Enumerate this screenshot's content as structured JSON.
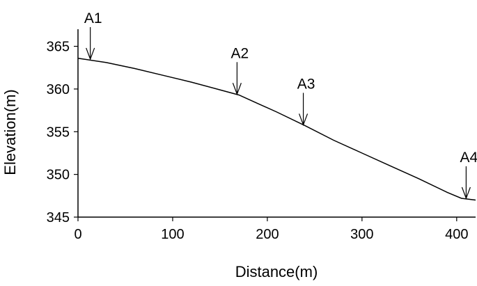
{
  "chart_data": {
    "type": "line",
    "xlabel": "Distance(m)",
    "ylabel": "Elevation(m)",
    "xlim": [
      0,
      420
    ],
    "ylim": [
      345,
      367
    ],
    "x_ticks": [
      0,
      100,
      200,
      300,
      400
    ],
    "y_ticks": [
      345,
      350,
      355,
      360,
      365
    ],
    "grid": false,
    "series": [
      {
        "x": [
          0,
          30,
          60,
          90,
          120,
          150,
          170,
          190,
          210,
          240,
          270,
          300,
          330,
          360,
          390,
          405,
          420
        ],
        "values": [
          363.6,
          363.1,
          362.4,
          361.6,
          360.8,
          359.9,
          359.3,
          358.3,
          357.3,
          355.7,
          354.0,
          352.5,
          351.0,
          349.5,
          347.9,
          347.2,
          347.0
        ]
      }
    ],
    "annotations": [
      {
        "label": "A1",
        "x": 13,
        "y": 363.5
      },
      {
        "label": "A2",
        "x": 168,
        "y": 359.4
      },
      {
        "label": "A3",
        "x": 238,
        "y": 355.8
      },
      {
        "label": "A4",
        "x": 410,
        "y": 347.2
      }
    ]
  }
}
